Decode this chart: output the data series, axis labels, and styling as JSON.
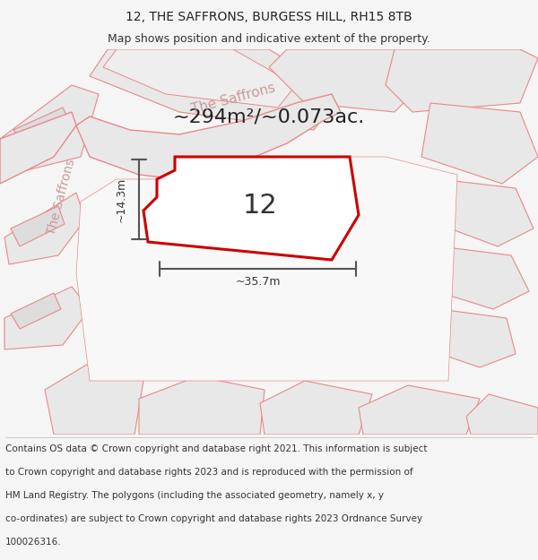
{
  "title_line1": "12, THE SAFFRONS, BURGESS HILL, RH15 8TB",
  "title_line2": "Map shows position and indicative extent of the property.",
  "area_text": "~294m²/~0.073ac.",
  "property_number": "12",
  "dim_horizontal": "~35.7m",
  "dim_vertical": "~14.3m",
  "background_color": "#f5f5f5",
  "map_bg_color": "#ffffff",
  "road_fill_color": "#e8e8e8",
  "road_stroke_color": "#e8888a",
  "property_fill_color": "#ffffff",
  "property_stroke_color": "#cc0000",
  "dim_line_color": "#555555",
  "road_label_color": "#cc9999",
  "footer_lines": [
    "Contains OS data © Crown copyright and database right 2021. This information is subject",
    "to Crown copyright and database rights 2023 and is reproduced with the permission of",
    "HM Land Registry. The polygons (including the associated geometry, namely x, y",
    "co-ordinates) are subject to Crown copyright and database rights 2023 Ordnance Survey",
    "100026316."
  ],
  "title_fontsize": 10,
  "subtitle_fontsize": 9,
  "footer_fontsize": 7.5,
  "area_fontsize": 16,
  "number_fontsize": 22,
  "road_label_fontsize": 11
}
